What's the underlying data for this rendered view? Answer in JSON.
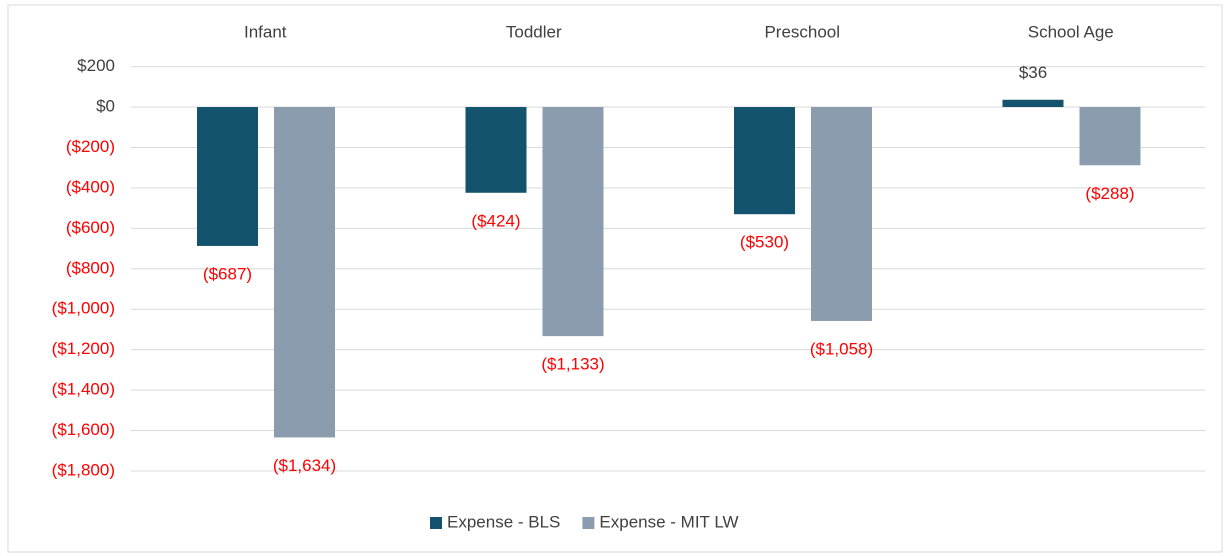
{
  "chart_data": {
    "type": "bar",
    "categories": [
      "Infant",
      "Toddler",
      "Preschool",
      "School Age"
    ],
    "series": [
      {
        "name": "Expense - BLS",
        "color": "#14536e",
        "values": [
          -687,
          -424,
          -530,
          36
        ],
        "value_labels": [
          "($687)",
          "($424)",
          "($530)",
          "$36"
        ]
      },
      {
        "name": "Expense - MIT LW",
        "color": "#8a9cad",
        "values": [
          -1634,
          -1133,
          -1058,
          -288
        ],
        "value_labels": [
          "($1,634)",
          "($1,133)",
          "($1,058)",
          "($288)"
        ]
      }
    ],
    "ylim": [
      -1800,
      200
    ],
    "yticks": [
      {
        "value": 200,
        "label": "$200"
      },
      {
        "value": 0,
        "label": "$0"
      },
      {
        "value": -200,
        "label": "($200)"
      },
      {
        "value": -400,
        "label": "($400)"
      },
      {
        "value": -600,
        "label": "($600)"
      },
      {
        "value": -800,
        "label": "($800)"
      },
      {
        "value": -1000,
        "label": "($1,000)"
      },
      {
        "value": -1200,
        "label": "($1,200)"
      },
      {
        "value": -1400,
        "label": "($1,400)"
      },
      {
        "value": -1600,
        "label": "($1,600)"
      },
      {
        "value": -1800,
        "label": "($1,800)"
      }
    ],
    "grid": true,
    "legend": "bottom"
  }
}
